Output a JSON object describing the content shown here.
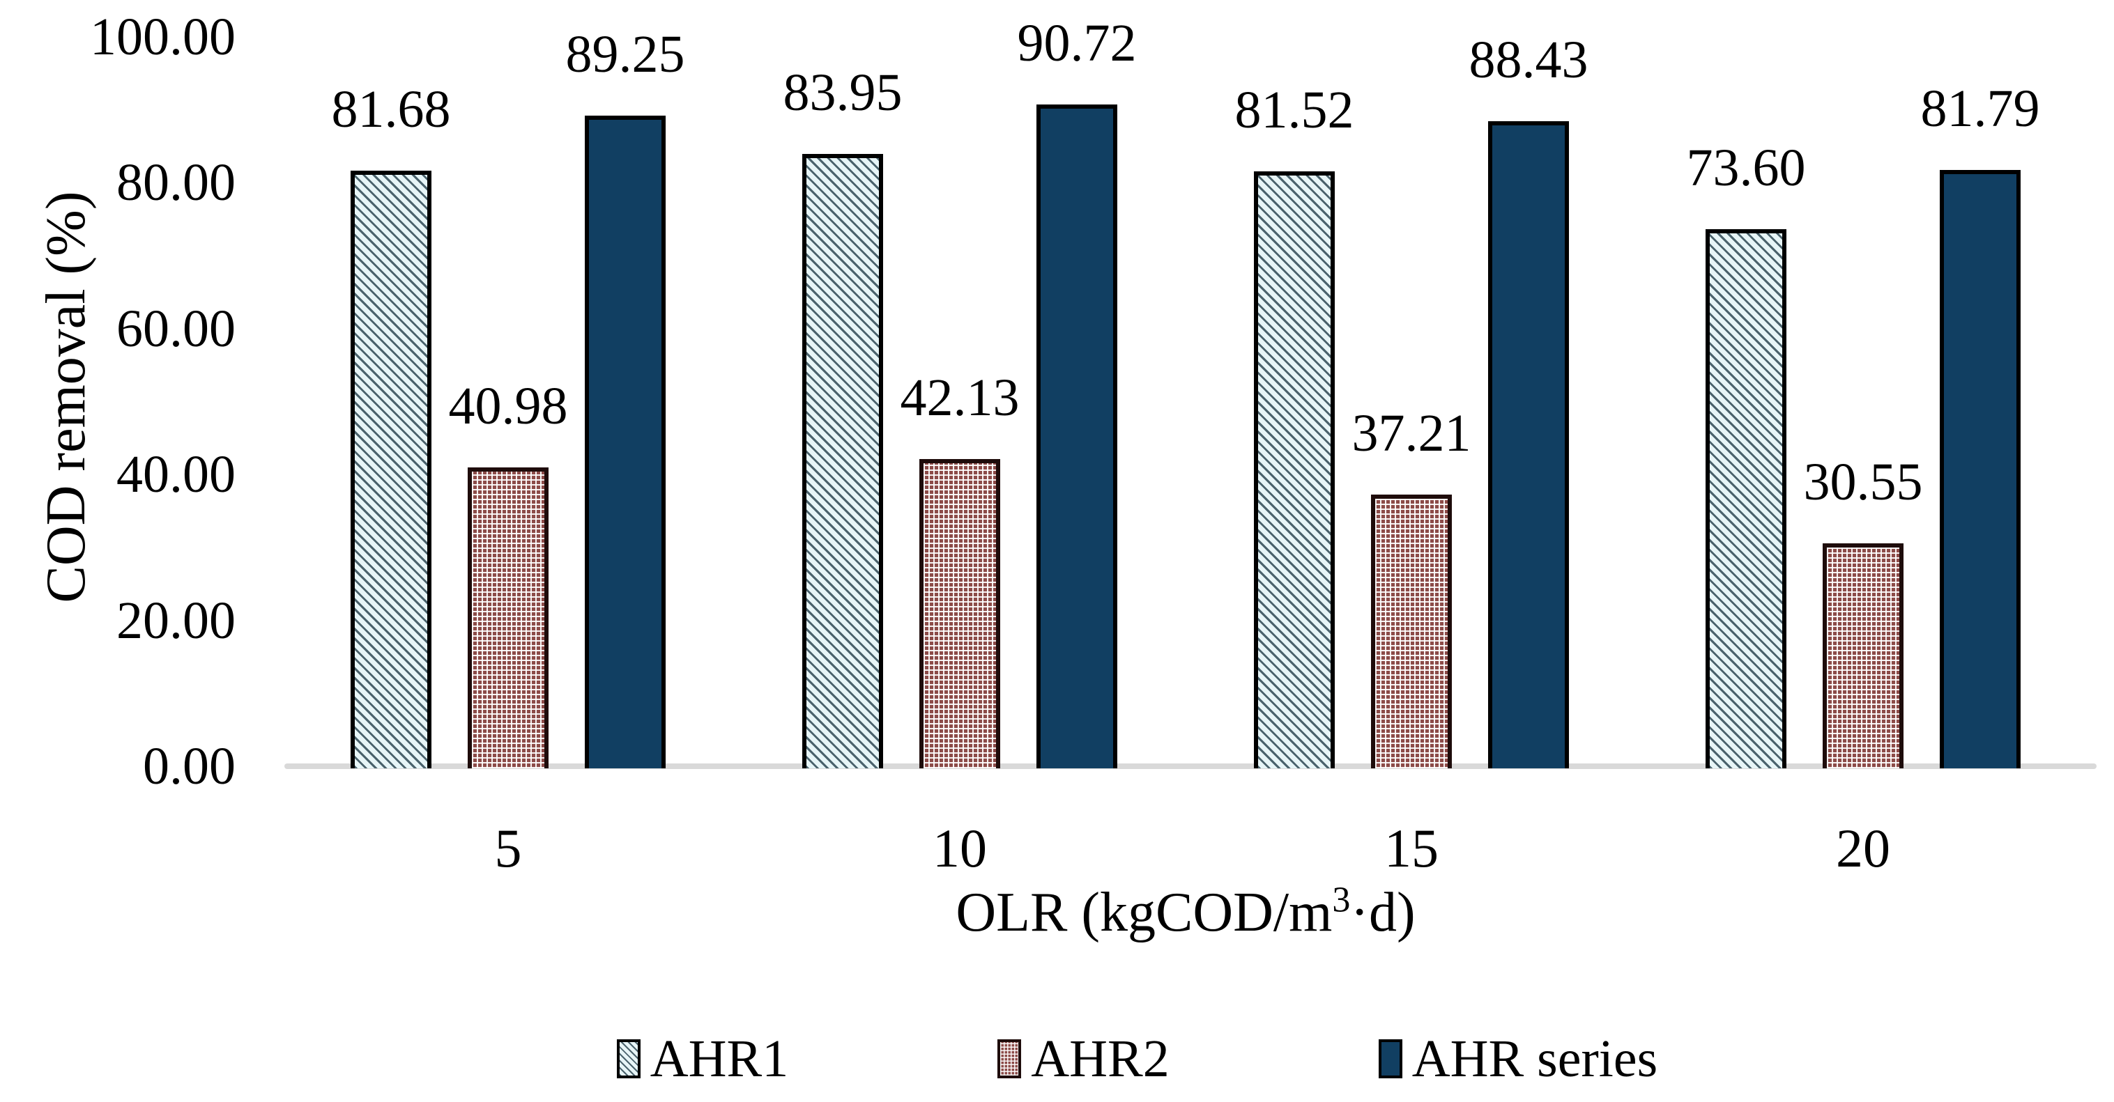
{
  "chart_data": {
    "type": "bar",
    "title": "",
    "categories": [
      "5",
      "10",
      "15",
      "20"
    ],
    "series": [
      {
        "name": "AHR1",
        "values": [
          81.68,
          83.95,
          81.52,
          73.6
        ],
        "pattern": "diagonal-hatch",
        "fill": "#e7f5f7",
        "pattern_color": "#4a626c"
      },
      {
        "name": "AHR2",
        "values": [
          40.98,
          42.13,
          37.21,
          30.55
        ],
        "pattern": "checker",
        "fill": "#8c4b48",
        "pattern_color": "#ffffff"
      },
      {
        "name": "AHR series",
        "values": [
          89.25,
          90.72,
          88.43,
          81.79
        ],
        "pattern": "solid",
        "fill": "#113f62",
        "pattern_color": "#113f62"
      }
    ],
    "data_labels_visible": true,
    "data_label_decimals": 2,
    "xlabel": "OLR (kgCOD/m³·d)",
    "xlabel_parts": {
      "prefix": "OLR (kgCOD/m",
      "sup": "3",
      "suffix": "·d)"
    },
    "ylabel": "COD removal (%)",
    "ylim": [
      0,
      100
    ],
    "ytick_values": [
      0,
      20,
      40,
      60,
      80,
      100
    ],
    "ytick_labels": [
      "0.00",
      "20.00",
      "40.00",
      "60.00",
      "80.00",
      "100.00"
    ],
    "grid": false,
    "legend_position": "bottom",
    "colors": {
      "axis_baseline": "#d9d9d9",
      "bar_border": "#000000",
      "ahr2_border": "#1e0c0b",
      "text": "#000000",
      "background": "#ffffff"
    }
  }
}
